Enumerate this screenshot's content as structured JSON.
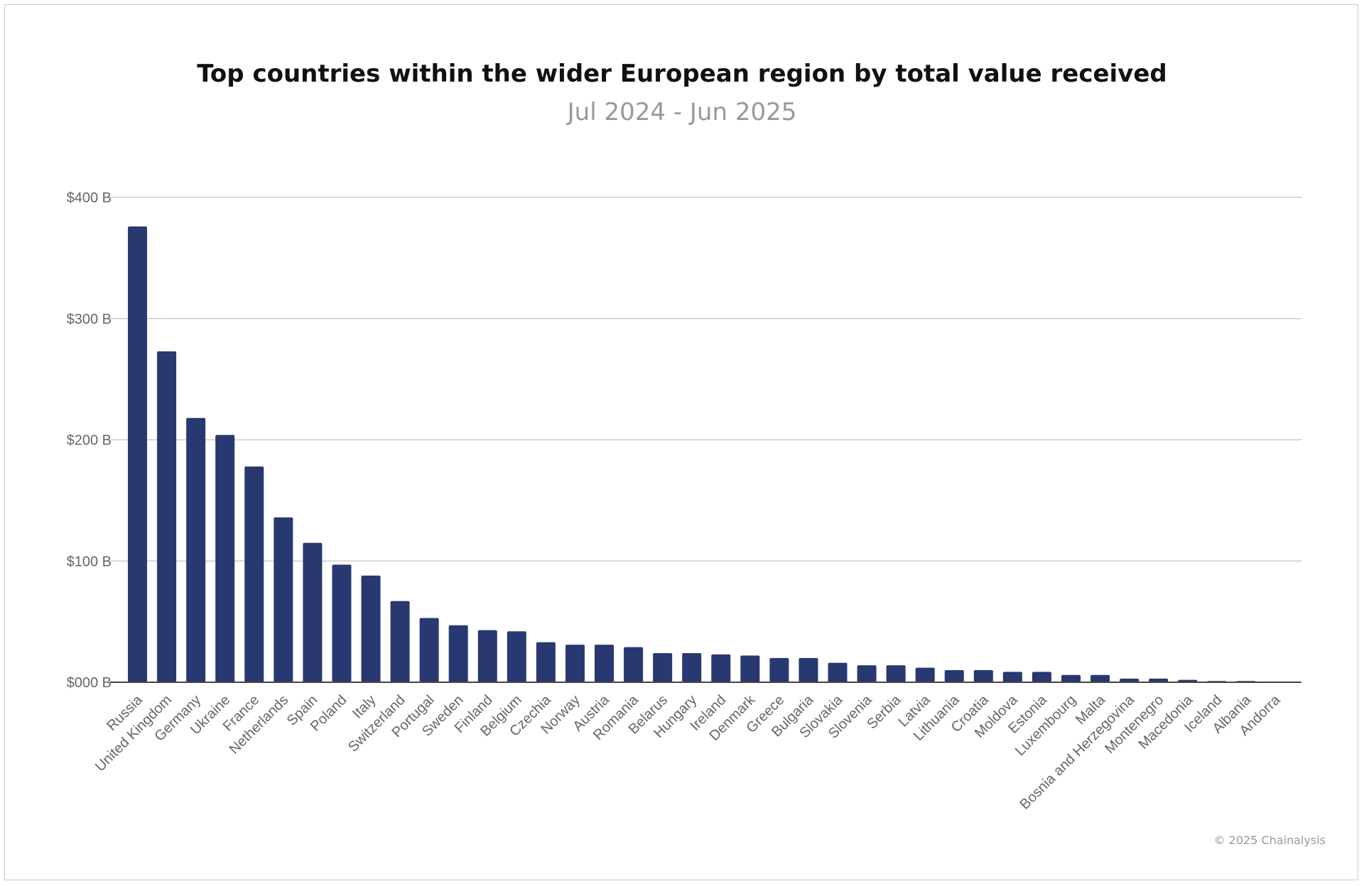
{
  "chart_data": {
    "type": "bar",
    "title": "Top countries within the wider European region by total value received",
    "subtitle": "Jul 2024 - Jun 2025",
    "xlabel": "",
    "ylabel": "",
    "ylim": [
      0,
      400
    ],
    "yticks": [
      {
        "value": 0,
        "label": "$000 B"
      },
      {
        "value": 100,
        "label": "$100 B"
      },
      {
        "value": 200,
        "label": "$200 B"
      },
      {
        "value": 300,
        "label": "$300 B"
      },
      {
        "value": 400,
        "label": "$400 B"
      }
    ],
    "grid": true,
    "bar_color": "#283870",
    "categories": [
      "Russia",
      "United Kingdom",
      "Germany",
      "Ukraine",
      "France",
      "Netherlands",
      "Spain",
      "Poland",
      "Italy",
      "Switzerland",
      "Portugal",
      "Sweden",
      "Finland",
      "Belgium",
      "Czechia",
      "Norway",
      "Austria",
      "Romania",
      "Belarus",
      "Hungary",
      "Ireland",
      "Denmark",
      "Greece",
      "Bulgaria",
      "Slovakia",
      "Slovenia",
      "Serbia",
      "Latvia",
      "Lithuania",
      "Croatia",
      "Moldova",
      "Estonia",
      "Luxembourg",
      "Malta",
      "Bosnia and Herzegovina",
      "Montenegro",
      "Macedonia",
      "Iceland",
      "Albania",
      "Andorra"
    ],
    "values": [
      376,
      273,
      218,
      204,
      178,
      136,
      115,
      97,
      88,
      67,
      53,
      47,
      43,
      42,
      33,
      31,
      31,
      29,
      24,
      24,
      23,
      22,
      20,
      20,
      16,
      14,
      14,
      12,
      10,
      10,
      8.6,
      8.6,
      6,
      6,
      3,
      3,
      2,
      1,
      1,
      0.3
    ]
  },
  "footer": "© 2025 Chainalysis"
}
